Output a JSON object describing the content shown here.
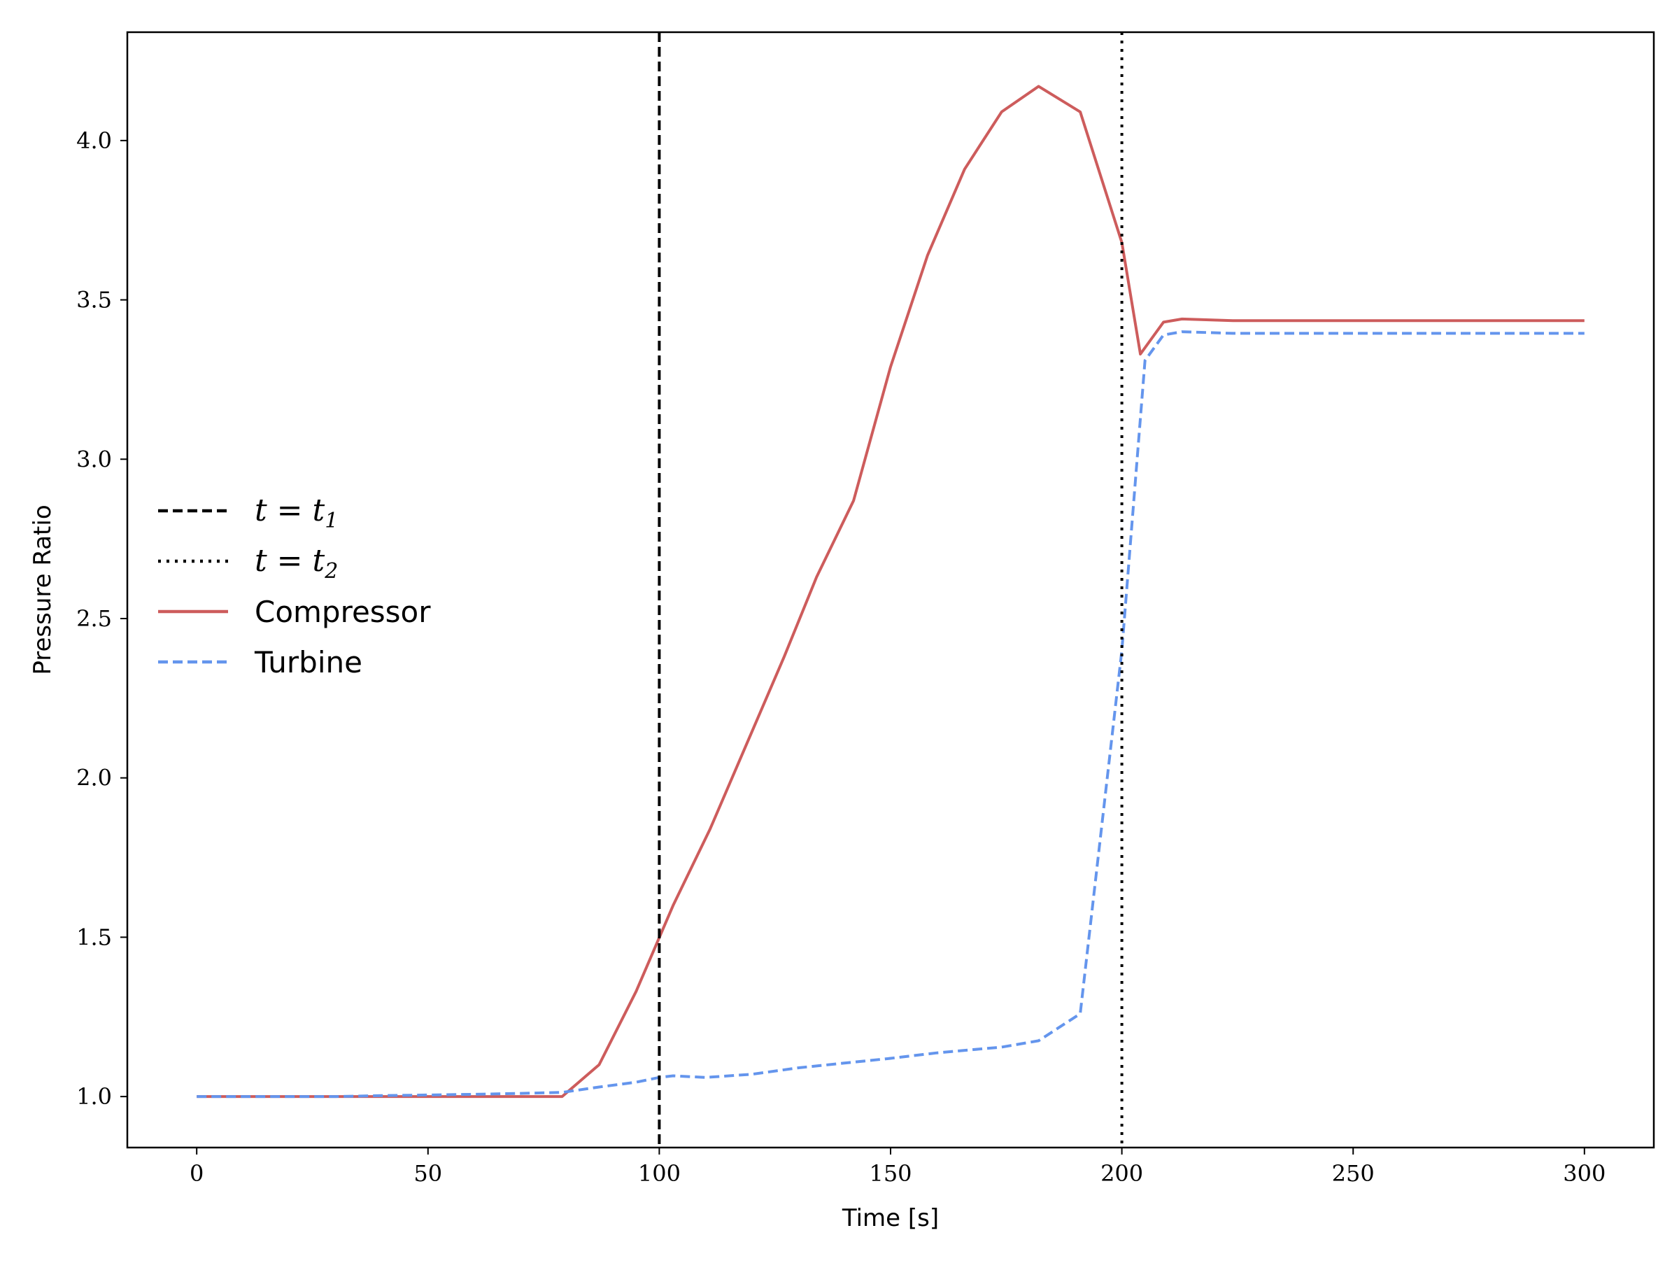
{
  "chart_data": {
    "type": "line",
    "xlabel": "Time [s]",
    "ylabel": "Pressure Ratio",
    "xlim": [
      -15,
      315
    ],
    "ylim": [
      0.84,
      4.34
    ],
    "xticks": [
      0,
      50,
      100,
      150,
      200,
      250,
      300
    ],
    "xtick_labels": [
      "0",
      "50",
      "100",
      "150",
      "200",
      "250",
      "300"
    ],
    "yticks": [
      1.0,
      1.5,
      2.0,
      2.5,
      3.0,
      3.5,
      4.0
    ],
    "ytick_labels": [
      "1.0",
      "1.5",
      "2.0",
      "2.5",
      "3.0",
      "3.5",
      "4.0"
    ],
    "grid": false,
    "legend_position": "center-left",
    "vlines": [
      {
        "name_main": "t = t",
        "name_sub": "1",
        "x": 100,
        "style": "dashed",
        "color": "#000000"
      },
      {
        "name_main": "t = t",
        "name_sub": "2",
        "x": 200,
        "style": "dotted",
        "color": "#000000"
      }
    ],
    "series": [
      {
        "name": "Compressor",
        "color": "#cd5c5c",
        "style": "solid",
        "x": [
          0,
          10,
          20,
          30,
          40,
          50,
          60,
          70,
          79,
          87,
          95,
          103,
          111,
          119,
          127,
          134,
          142,
          150,
          158,
          166,
          174,
          182,
          191,
          200,
          204,
          209,
          213,
          224,
          234,
          250,
          270,
          300
        ],
        "y": [
          1.0,
          1.0,
          1.0,
          1.0,
          1.0,
          1.0,
          1.0,
          1.0,
          1.0,
          1.1,
          1.33,
          1.6,
          1.84,
          2.11,
          2.38,
          2.63,
          2.87,
          3.29,
          3.64,
          3.91,
          4.09,
          4.17,
          4.09,
          3.68,
          3.33,
          3.43,
          3.44,
          3.435,
          3.435,
          3.435,
          3.435,
          3.435
        ]
      },
      {
        "name": "Turbine",
        "color": "#6495ed",
        "style": "dashed",
        "x": [
          0,
          10,
          20,
          30,
          40,
          50,
          60,
          70,
          79,
          87,
          95,
          100,
          103,
          110,
          120,
          130,
          140,
          150,
          160,
          166,
          174,
          182,
          191,
          200,
          205,
          209,
          213,
          224,
          250,
          300
        ],
        "y": [
          1.0,
          1.0,
          1.0,
          1.0,
          1.003,
          1.005,
          1.007,
          1.01,
          1.013,
          1.03,
          1.045,
          1.06,
          1.065,
          1.06,
          1.07,
          1.09,
          1.105,
          1.12,
          1.137,
          1.145,
          1.155,
          1.175,
          1.26,
          2.4,
          3.31,
          3.39,
          3.4,
          3.395,
          3.395,
          3.395
        ]
      }
    ]
  }
}
